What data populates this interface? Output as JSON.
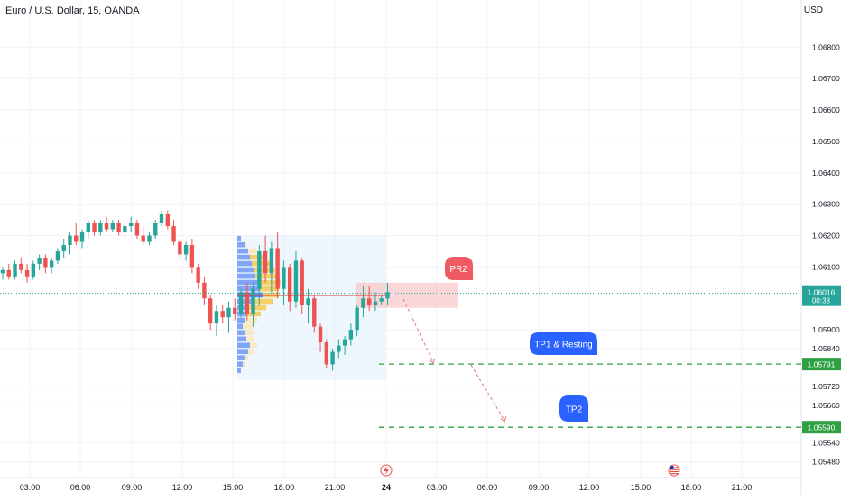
{
  "header": {
    "symbol_title": "Euro / U.S. Dollar, 15, OANDA",
    "currency": "USD"
  },
  "chart_data": {
    "type": "candlestick",
    "title": "Euro / U.S. Dollar, 15, OANDA",
    "ylabel": "USD",
    "ylim": [
      1.0543,
      1.0695
    ],
    "y_ticks": [
      "1.06800",
      "1.06700",
      "1.06600",
      "1.06500",
      "1.06400",
      "1.06300",
      "1.06200",
      "1.06100",
      "1.05900",
      "1.05840",
      "1.05720",
      "1.05660",
      "1.05540",
      "1.05480"
    ],
    "x_ticks": [
      "03:00",
      "06:00",
      "09:00",
      "12:00",
      "15:00",
      "18:00",
      "21:00",
      "24",
      "03:00",
      "06:00",
      "09:00",
      "12:00",
      "15:00",
      "18:00",
      "21:00"
    ],
    "colors": {
      "up": "#26a69a",
      "down": "#ef5350",
      "target_line": "#2ea043",
      "callout": "#2962ff",
      "prz_box": "#f8c9cc"
    },
    "current_price": {
      "value": "1.06016",
      "countdown": "00:33"
    },
    "price_levels": [
      {
        "label": "1.05791",
        "value": 1.05791
      },
      {
        "label": "1.05590",
        "value": 1.0559
      }
    ],
    "annotations": [
      {
        "text": "PRZ",
        "kind": "red-callout"
      },
      {
        "text": "TP1 & Resting",
        "kind": "blue-callout"
      },
      {
        "text": "TP2",
        "kind": "blue-callout"
      }
    ],
    "candles": [
      [
        1.0608,
        1.061,
        1.0606,
        1.0609
      ],
      [
        1.0609,
        1.0611,
        1.0606,
        1.0607
      ],
      [
        1.0607,
        1.0612,
        1.0606,
        1.0611
      ],
      [
        1.0611,
        1.0613,
        1.0608,
        1.0609
      ],
      [
        1.0609,
        1.0611,
        1.0605,
        1.0607
      ],
      [
        1.0607,
        1.0612,
        1.0606,
        1.0611
      ],
      [
        1.0611,
        1.0614,
        1.0609,
        1.0613
      ],
      [
        1.0613,
        1.0614,
        1.0608,
        1.061
      ],
      [
        1.061,
        1.0613,
        1.0608,
        1.0612
      ],
      [
        1.0612,
        1.0616,
        1.0611,
        1.0615
      ],
      [
        1.0615,
        1.0619,
        1.0613,
        1.0617
      ],
      [
        1.0617,
        1.0621,
        1.0614,
        1.062
      ],
      [
        1.062,
        1.0624,
        1.0617,
        1.0618
      ],
      [
        1.0618,
        1.0622,
        1.0616,
        1.0621
      ],
      [
        1.0621,
        1.0625,
        1.0619,
        1.0624
      ],
      [
        1.0624,
        1.0625,
        1.062,
        1.0621
      ],
      [
        1.0621,
        1.0625,
        1.062,
        1.0624
      ],
      [
        1.0624,
        1.0626,
        1.0621,
        1.0622
      ],
      [
        1.0622,
        1.0625,
        1.0621,
        1.0624
      ],
      [
        1.0624,
        1.0625,
        1.062,
        1.0621
      ],
      [
        1.0621,
        1.0624,
        1.0619,
        1.0623
      ],
      [
        1.0623,
        1.0626,
        1.0621,
        1.0624
      ],
      [
        1.0624,
        1.0625,
        1.0619,
        1.062
      ],
      [
        1.062,
        1.0623,
        1.0617,
        1.0618
      ],
      [
        1.0618,
        1.0621,
        1.0617,
        1.062
      ],
      [
        1.062,
        1.0625,
        1.0619,
        1.0624
      ],
      [
        1.0624,
        1.0628,
        1.0623,
        1.0627
      ],
      [
        1.0627,
        1.0628,
        1.0622,
        1.0623
      ],
      [
        1.0623,
        1.0625,
        1.0617,
        1.0618
      ],
      [
        1.0618,
        1.0619,
        1.0612,
        1.0614
      ],
      [
        1.0614,
        1.0618,
        1.0612,
        1.0617
      ],
      [
        1.0617,
        1.0619,
        1.0608,
        1.061
      ],
      [
        1.061,
        1.0611,
        1.0603,
        1.0605
      ],
      [
        1.0605,
        1.0607,
        1.0598,
        1.06
      ],
      [
        1.06,
        1.0601,
        1.059,
        1.0592
      ],
      [
        1.0592,
        1.0598,
        1.0588,
        1.0596
      ],
      [
        1.0596,
        1.0598,
        1.0592,
        1.0594
      ],
      [
        1.0594,
        1.0599,
        1.0589,
        1.0597
      ],
      [
        1.0597,
        1.06,
        1.0593,
        1.0595
      ],
      [
        1.0595,
        1.0603,
        1.0594,
        1.0602
      ],
      [
        1.0602,
        1.0605,
        1.0593,
        1.0595
      ],
      [
        1.0595,
        1.0605,
        1.0591,
        1.0603
      ],
      [
        1.0603,
        1.0617,
        1.0598,
        1.0615
      ],
      [
        1.0615,
        1.062,
        1.0605,
        1.0608
      ],
      [
        1.0608,
        1.0618,
        1.0602,
        1.0616
      ],
      [
        1.0616,
        1.0621,
        1.06,
        1.0603
      ],
      [
        1.0603,
        1.0612,
        1.0598,
        1.061
      ],
      [
        1.061,
        1.0611,
        1.0596,
        1.0599
      ],
      [
        1.0599,
        1.0615,
        1.0597,
        1.0612
      ],
      [
        1.0612,
        1.0613,
        1.0595,
        1.0598
      ],
      [
        1.0598,
        1.0603,
        1.0592,
        1.06
      ],
      [
        1.06,
        1.0601,
        1.0589,
        1.0591
      ],
      [
        1.0591,
        1.0592,
        1.0583,
        1.0586
      ],
      [
        1.0586,
        1.0587,
        1.0578,
        1.0579
      ],
      [
        1.0579,
        1.0584,
        1.0577,
        1.0583
      ],
      [
        1.0583,
        1.0587,
        1.0581,
        1.0585
      ],
      [
        1.0585,
        1.0588,
        1.0582,
        1.0587
      ],
      [
        1.0587,
        1.0592,
        1.0585,
        1.059
      ],
      [
        1.059,
        1.0598,
        1.0588,
        1.0597
      ],
      [
        1.0597,
        1.0604,
        1.0594,
        1.06
      ],
      [
        1.06,
        1.0604,
        1.0596,
        1.0598
      ],
      [
        1.0598,
        1.0602,
        1.0596,
        1.0599
      ],
      [
        1.0599,
        1.0601,
        1.0598,
        1.06
      ],
      [
        1.06,
        1.0605,
        1.0598,
        1.0602
      ]
    ]
  }
}
